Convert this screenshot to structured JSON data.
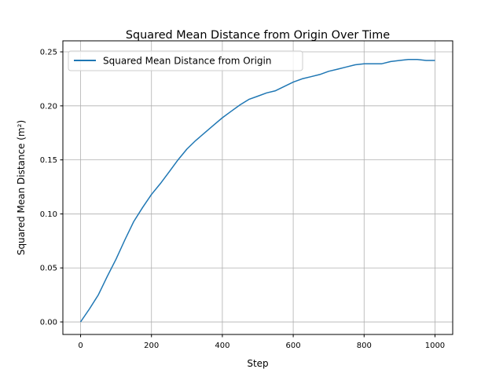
{
  "chart_data": {
    "type": "line",
    "title": "Squared Mean Distance from Origin Over Time",
    "xlabel": "Step",
    "ylabel": "Squared Mean Distance (m²)",
    "xlim": [
      -50,
      1050
    ],
    "ylim": [
      -0.0116,
      0.2602
    ],
    "xticks": [
      0,
      200,
      400,
      600,
      800,
      1000
    ],
    "xtick_labels": [
      "0",
      "200",
      "400",
      "600",
      "800",
      "1000"
    ],
    "yticks": [
      0.0,
      0.05,
      0.1,
      0.15,
      0.2,
      0.25
    ],
    "ytick_labels": [
      "0.00",
      "0.05",
      "0.10",
      "0.15",
      "0.20",
      "0.25"
    ],
    "grid": true,
    "legend_position": "upper-left",
    "series": [
      {
        "name": "Squared Mean Distance from Origin",
        "color": "#1f77b4",
        "x": [
          0,
          25,
          50,
          75,
          100,
          125,
          150,
          175,
          200,
          225,
          250,
          275,
          300,
          325,
          350,
          375,
          400,
          425,
          450,
          475,
          500,
          525,
          550,
          575,
          600,
          625,
          650,
          675,
          700,
          725,
          750,
          775,
          800,
          825,
          850,
          875,
          900,
          925,
          950,
          975,
          1000
        ],
        "values": [
          0.0,
          0.012,
          0.025,
          0.042,
          0.058,
          0.076,
          0.093,
          0.106,
          0.118,
          0.128,
          0.139,
          0.15,
          0.16,
          0.168,
          0.175,
          0.182,
          0.189,
          0.195,
          0.201,
          0.206,
          0.209,
          0.212,
          0.214,
          0.218,
          0.222,
          0.225,
          0.227,
          0.229,
          0.232,
          0.234,
          0.236,
          0.238,
          0.239,
          0.239,
          0.239,
          0.241,
          0.242,
          0.243,
          0.243,
          0.242,
          0.242
        ]
      }
    ]
  }
}
